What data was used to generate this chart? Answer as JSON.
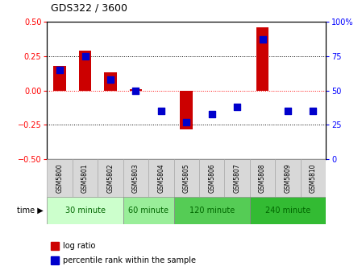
{
  "title": "GDS322 / 3600",
  "samples": [
    "GSM5800",
    "GSM5801",
    "GSM5802",
    "GSM5803",
    "GSM5804",
    "GSM5805",
    "GSM5806",
    "GSM5807",
    "GSM5808",
    "GSM5809",
    "GSM5810"
  ],
  "log_ratio": [
    0.18,
    0.29,
    0.13,
    0.01,
    0.0,
    -0.28,
    0.0,
    0.0,
    0.46,
    0.0,
    0.0
  ],
  "percentile_rank": [
    65,
    75,
    58,
    50,
    35,
    27,
    33,
    38,
    87,
    35,
    35
  ],
  "ylim_left": [
    -0.5,
    0.5
  ],
  "ylim_right": [
    0,
    100
  ],
  "yticks_left": [
    -0.5,
    -0.25,
    0.0,
    0.25,
    0.5
  ],
  "yticks_right": [
    0,
    25,
    50,
    75,
    100
  ],
  "bar_color": "#cc0000",
  "dot_color": "#0000cc",
  "bar_width": 0.5,
  "dot_size": 30,
  "time_groups": [
    {
      "label": "30 minute",
      "start": 0,
      "end": 3,
      "color": "#ccffcc"
    },
    {
      "label": "60 minute",
      "start": 3,
      "end": 5,
      "color": "#99ee99"
    },
    {
      "label": "120 minute",
      "start": 5,
      "end": 8,
      "color": "#55cc55"
    },
    {
      "label": "240 minute",
      "start": 8,
      "end": 11,
      "color": "#33bb33"
    }
  ],
  "legend_bar_label": "log ratio",
  "legend_dot_label": "percentile rank within the sample",
  "background_color": "#ffffff",
  "sample_box_color": "#d8d8d8",
  "sample_box_edge": "#aaaaaa"
}
